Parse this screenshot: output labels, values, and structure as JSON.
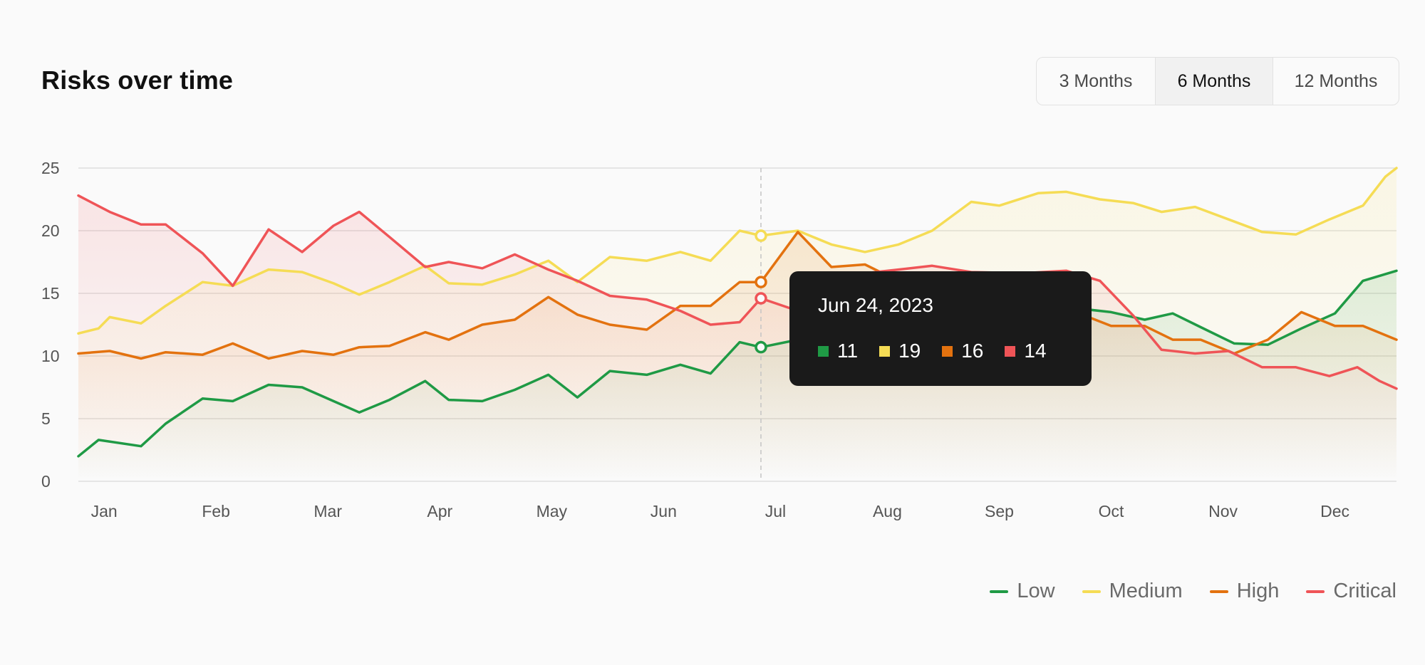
{
  "header": {
    "title": "Risks over time",
    "ranges": [
      {
        "label": "3 Months",
        "active": false
      },
      {
        "label": "6 Months",
        "active": true
      },
      {
        "label": "12 Months",
        "active": false
      }
    ]
  },
  "tooltip": {
    "date": "Jun 24, 2023",
    "values": [
      {
        "value": "11",
        "color": "#1f9a45"
      },
      {
        "value": "19",
        "color": "#f5dc55"
      },
      {
        "value": "16",
        "color": "#e3720f"
      },
      {
        "value": "14",
        "color": "#ef5457"
      }
    ]
  },
  "legend": [
    {
      "label": "Low",
      "color": "#1f9a45"
    },
    {
      "label": "Medium",
      "color": "#f5dc55"
    },
    {
      "label": "High",
      "color": "#e3720f"
    },
    {
      "label": "Critical",
      "color": "#ef5457"
    }
  ],
  "chart_data": {
    "type": "area",
    "title": "Risks over time",
    "xlabel": "",
    "ylabel": "",
    "x_ticks": [
      "Jan",
      "Feb",
      "Mar",
      "Apr",
      "May",
      "Jun",
      "Jul",
      "Aug",
      "Sep",
      "Oct",
      "Nov",
      "Dec"
    ],
    "y_ticks": [
      0,
      5,
      10,
      15,
      20,
      25
    ],
    "xlim": [
      -0.23,
      11.55
    ],
    "ylim": [
      0,
      25
    ],
    "grid": true,
    "legend_position": "bottom-right",
    "hover_x": 5.87,
    "series": [
      {
        "name": "Low",
        "color": "#1f9a45",
        "points": [
          [
            -0.23,
            2.0
          ],
          [
            -0.05,
            3.3
          ],
          [
            0.33,
            2.8
          ],
          [
            0.55,
            4.6
          ],
          [
            0.88,
            6.6
          ],
          [
            1.15,
            6.4
          ],
          [
            1.47,
            7.7
          ],
          [
            1.77,
            7.5
          ],
          [
            2.05,
            6.4
          ],
          [
            2.28,
            5.5
          ],
          [
            2.55,
            6.5
          ],
          [
            2.87,
            8.0
          ],
          [
            3.08,
            6.5
          ],
          [
            3.38,
            6.4
          ],
          [
            3.67,
            7.3
          ],
          [
            3.97,
            8.5
          ],
          [
            4.23,
            6.7
          ],
          [
            4.52,
            8.8
          ],
          [
            4.85,
            8.5
          ],
          [
            5.15,
            9.3
          ],
          [
            5.42,
            8.6
          ],
          [
            5.68,
            11.1
          ],
          [
            5.87,
            10.7
          ],
          [
            6.2,
            11.3
          ],
          [
            6.5,
            12.2
          ],
          [
            6.8,
            12.4
          ],
          [
            7.1,
            13.6
          ],
          [
            7.4,
            14.2
          ],
          [
            7.75,
            14.6
          ],
          [
            8.2,
            14.3
          ],
          [
            8.6,
            13.9
          ],
          [
            9.0,
            13.5
          ],
          [
            9.3,
            12.9
          ],
          [
            9.55,
            13.4
          ],
          [
            9.8,
            12.3
          ],
          [
            10.1,
            11.0
          ],
          [
            10.4,
            10.9
          ],
          [
            10.7,
            12.2
          ],
          [
            11.0,
            13.4
          ],
          [
            11.25,
            16.0
          ],
          [
            11.55,
            16.8
          ]
        ]
      },
      {
        "name": "Medium",
        "color": "#f5dc55",
        "points": [
          [
            -0.23,
            11.8
          ],
          [
            -0.05,
            12.2
          ],
          [
            0.05,
            13.1
          ],
          [
            0.33,
            12.6
          ],
          [
            0.55,
            14.0
          ],
          [
            0.88,
            15.9
          ],
          [
            1.15,
            15.6
          ],
          [
            1.47,
            16.9
          ],
          [
            1.77,
            16.7
          ],
          [
            2.05,
            15.8
          ],
          [
            2.28,
            14.9
          ],
          [
            2.55,
            15.9
          ],
          [
            2.87,
            17.2
          ],
          [
            3.08,
            15.8
          ],
          [
            3.38,
            15.7
          ],
          [
            3.67,
            16.5
          ],
          [
            3.97,
            17.6
          ],
          [
            4.23,
            15.9
          ],
          [
            4.52,
            17.9
          ],
          [
            4.85,
            17.6
          ],
          [
            5.15,
            18.3
          ],
          [
            5.42,
            17.6
          ],
          [
            5.68,
            20.0
          ],
          [
            5.87,
            19.6
          ],
          [
            6.2,
            20.0
          ],
          [
            6.5,
            18.9
          ],
          [
            6.8,
            18.3
          ],
          [
            7.1,
            18.9
          ],
          [
            7.4,
            20.0
          ],
          [
            7.75,
            22.3
          ],
          [
            8.0,
            22.0
          ],
          [
            8.35,
            23.0
          ],
          [
            8.6,
            23.1
          ],
          [
            8.9,
            22.5
          ],
          [
            9.2,
            22.2
          ],
          [
            9.45,
            21.5
          ],
          [
            9.75,
            21.9
          ],
          [
            10.05,
            20.9
          ],
          [
            10.35,
            19.9
          ],
          [
            10.65,
            19.7
          ],
          [
            10.95,
            20.9
          ],
          [
            11.25,
            22.0
          ],
          [
            11.45,
            24.3
          ],
          [
            11.55,
            25.0
          ]
        ]
      },
      {
        "name": "High",
        "color": "#e3720f",
        "points": [
          [
            -0.23,
            10.2
          ],
          [
            0.05,
            10.4
          ],
          [
            0.33,
            9.8
          ],
          [
            0.55,
            10.3
          ],
          [
            0.88,
            10.1
          ],
          [
            1.15,
            11.0
          ],
          [
            1.47,
            9.8
          ],
          [
            1.77,
            10.4
          ],
          [
            2.05,
            10.1
          ],
          [
            2.28,
            10.7
          ],
          [
            2.55,
            10.8
          ],
          [
            2.87,
            11.9
          ],
          [
            3.08,
            11.3
          ],
          [
            3.38,
            12.5
          ],
          [
            3.67,
            12.9
          ],
          [
            3.97,
            14.7
          ],
          [
            4.23,
            13.3
          ],
          [
            4.52,
            12.5
          ],
          [
            4.85,
            12.1
          ],
          [
            5.15,
            14.0
          ],
          [
            5.42,
            14.0
          ],
          [
            5.68,
            15.9
          ],
          [
            5.87,
            15.9
          ],
          [
            6.2,
            19.9
          ],
          [
            6.5,
            17.1
          ],
          [
            6.8,
            17.3
          ],
          [
            7.05,
            16.2
          ],
          [
            7.3,
            15.5
          ],
          [
            7.6,
            15.0
          ],
          [
            7.9,
            14.6
          ],
          [
            8.2,
            14.2
          ],
          [
            8.6,
            13.8
          ],
          [
            9.0,
            12.4
          ],
          [
            9.3,
            12.4
          ],
          [
            9.55,
            11.3
          ],
          [
            9.8,
            11.3
          ],
          [
            10.1,
            10.2
          ],
          [
            10.4,
            11.3
          ],
          [
            10.7,
            13.5
          ],
          [
            11.0,
            12.4
          ],
          [
            11.25,
            12.4
          ],
          [
            11.55,
            11.3
          ]
        ]
      },
      {
        "name": "Critical",
        "color": "#ef5457",
        "points": [
          [
            -0.23,
            22.8
          ],
          [
            0.05,
            21.5
          ],
          [
            0.33,
            20.5
          ],
          [
            0.55,
            20.5
          ],
          [
            0.88,
            18.2
          ],
          [
            1.15,
            15.6
          ],
          [
            1.47,
            20.1
          ],
          [
            1.77,
            18.3
          ],
          [
            2.05,
            20.4
          ],
          [
            2.28,
            21.5
          ],
          [
            2.55,
            19.5
          ],
          [
            2.87,
            17.1
          ],
          [
            3.08,
            17.5
          ],
          [
            3.38,
            17.0
          ],
          [
            3.67,
            18.1
          ],
          [
            3.97,
            16.9
          ],
          [
            4.23,
            16.0
          ],
          [
            4.52,
            14.8
          ],
          [
            4.85,
            14.5
          ],
          [
            5.15,
            13.6
          ],
          [
            5.42,
            12.5
          ],
          [
            5.68,
            12.7
          ],
          [
            5.87,
            14.6
          ],
          [
            6.2,
            13.6
          ],
          [
            6.5,
            14.6
          ],
          [
            6.8,
            16.6
          ],
          [
            7.1,
            16.9
          ],
          [
            7.4,
            17.2
          ],
          [
            7.75,
            16.7
          ],
          [
            8.2,
            16.6
          ],
          [
            8.6,
            16.8
          ],
          [
            8.9,
            16.0
          ],
          [
            9.2,
            13.2
          ],
          [
            9.45,
            10.5
          ],
          [
            9.75,
            10.2
          ],
          [
            10.05,
            10.4
          ],
          [
            10.35,
            9.1
          ],
          [
            10.65,
            9.1
          ],
          [
            10.95,
            8.4
          ],
          [
            11.2,
            9.1
          ],
          [
            11.4,
            8.0
          ],
          [
            11.55,
            7.4
          ]
        ]
      }
    ]
  }
}
